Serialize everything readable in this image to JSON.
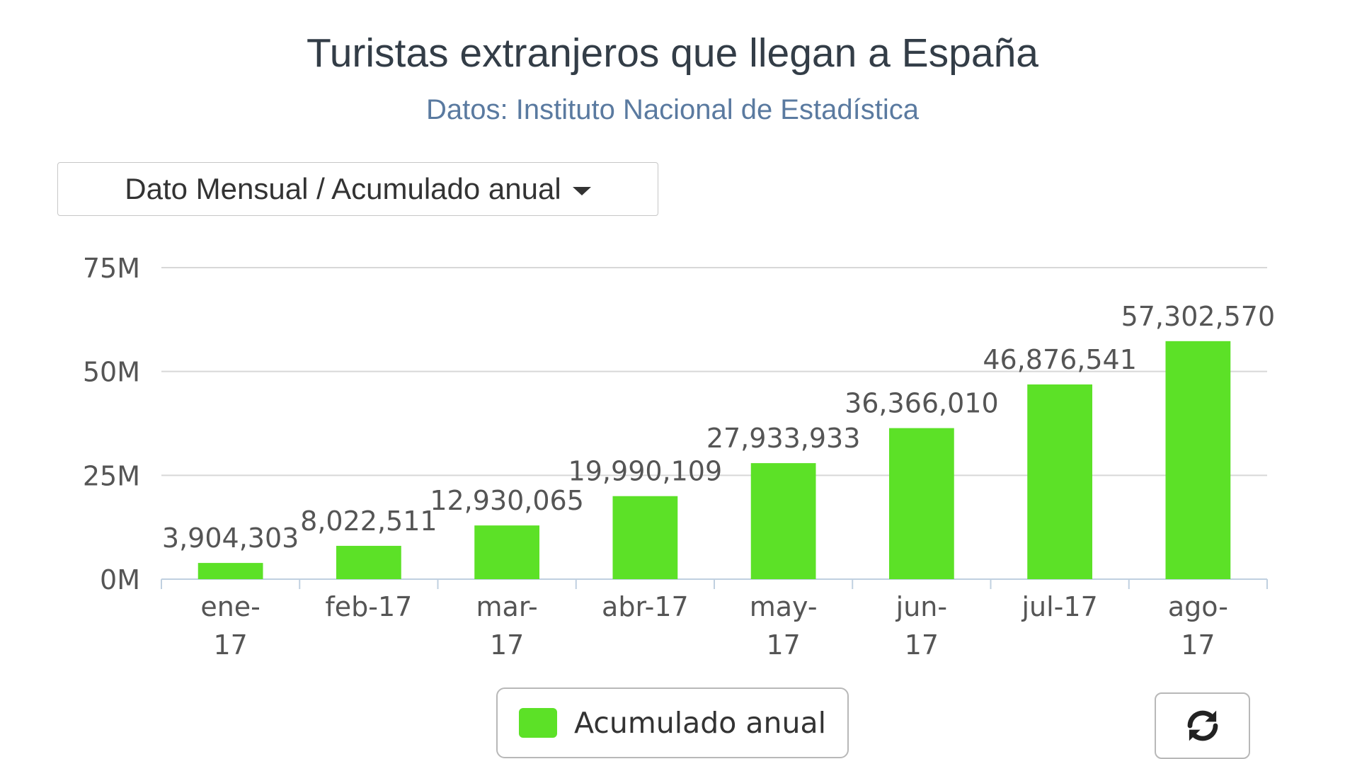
{
  "title": "Turistas extranjeros que llegan a España",
  "subtitle": "Datos: Instituto Nacional de Estadística",
  "dropdown": {
    "label": "Dato Mensual / Acumulado anual"
  },
  "legend": {
    "label": "Acumulado anual",
    "color": "#5ce127"
  },
  "refresh_icon": "refresh-icon",
  "colors": {
    "bar": "#5ce127",
    "grid": "#d8d8d8",
    "axis": "#c0d0e0",
    "text": "#555555"
  },
  "chart_data": {
    "type": "bar",
    "categories": [
      "ene-17",
      "feb-17",
      "mar-17",
      "abr-17",
      "may-17",
      "jun-17",
      "jul-17",
      "ago-17"
    ],
    "series": [
      {
        "name": "Acumulado anual",
        "values": [
          3904303,
          8022511,
          12930065,
          19990109,
          27933933,
          36366010,
          46876541,
          57302570
        ]
      }
    ],
    "data_labels": [
      "3,904,303",
      "8,022,511",
      "12,930,065",
      "19,990,109",
      "27,933,933",
      "36,366,010",
      "46,876,541",
      "57,302,570"
    ],
    "yticks": [
      0,
      25000000,
      50000000,
      75000000
    ],
    "ytick_labels": [
      "0M",
      "25M",
      "50M",
      "75M"
    ],
    "ylim": [
      0,
      75000000
    ],
    "grid": true,
    "legend_position": "bottom"
  }
}
